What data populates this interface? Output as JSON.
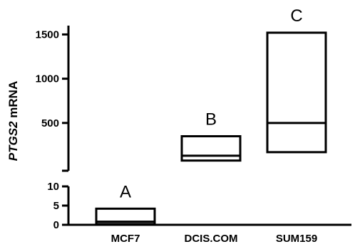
{
  "chart_data": {
    "type": "box",
    "ylabel_italic": "PTGS2",
    "ylabel_rest": " mRNA",
    "categories": [
      "MCF7",
      "DCIS.COM",
      "SUM159"
    ],
    "boxes": [
      {
        "category": "MCF7",
        "low": 0.2,
        "median": 0.8,
        "high": 4.2,
        "group_letter": "A"
      },
      {
        "category": "DCIS.COM",
        "low": 75,
        "median": 130,
        "high": 350,
        "group_letter": "B"
      },
      {
        "category": "SUM159",
        "low": 170,
        "median": 500,
        "high": 1520,
        "group_letter": "C"
      }
    ],
    "broken_y_axis": true,
    "lower_segment": {
      "ylim": [
        0,
        10
      ],
      "ticks": [
        "0",
        "5",
        "10"
      ],
      "tick_values": [
        0,
        5,
        10
      ]
    },
    "upper_segment": {
      "ylim": [
        -40,
        1600
      ],
      "ticks": [
        "500",
        "1000",
        "1500"
      ],
      "tick_values": [
        500,
        1000,
        1500
      ]
    },
    "grid": false,
    "legend": "none"
  }
}
